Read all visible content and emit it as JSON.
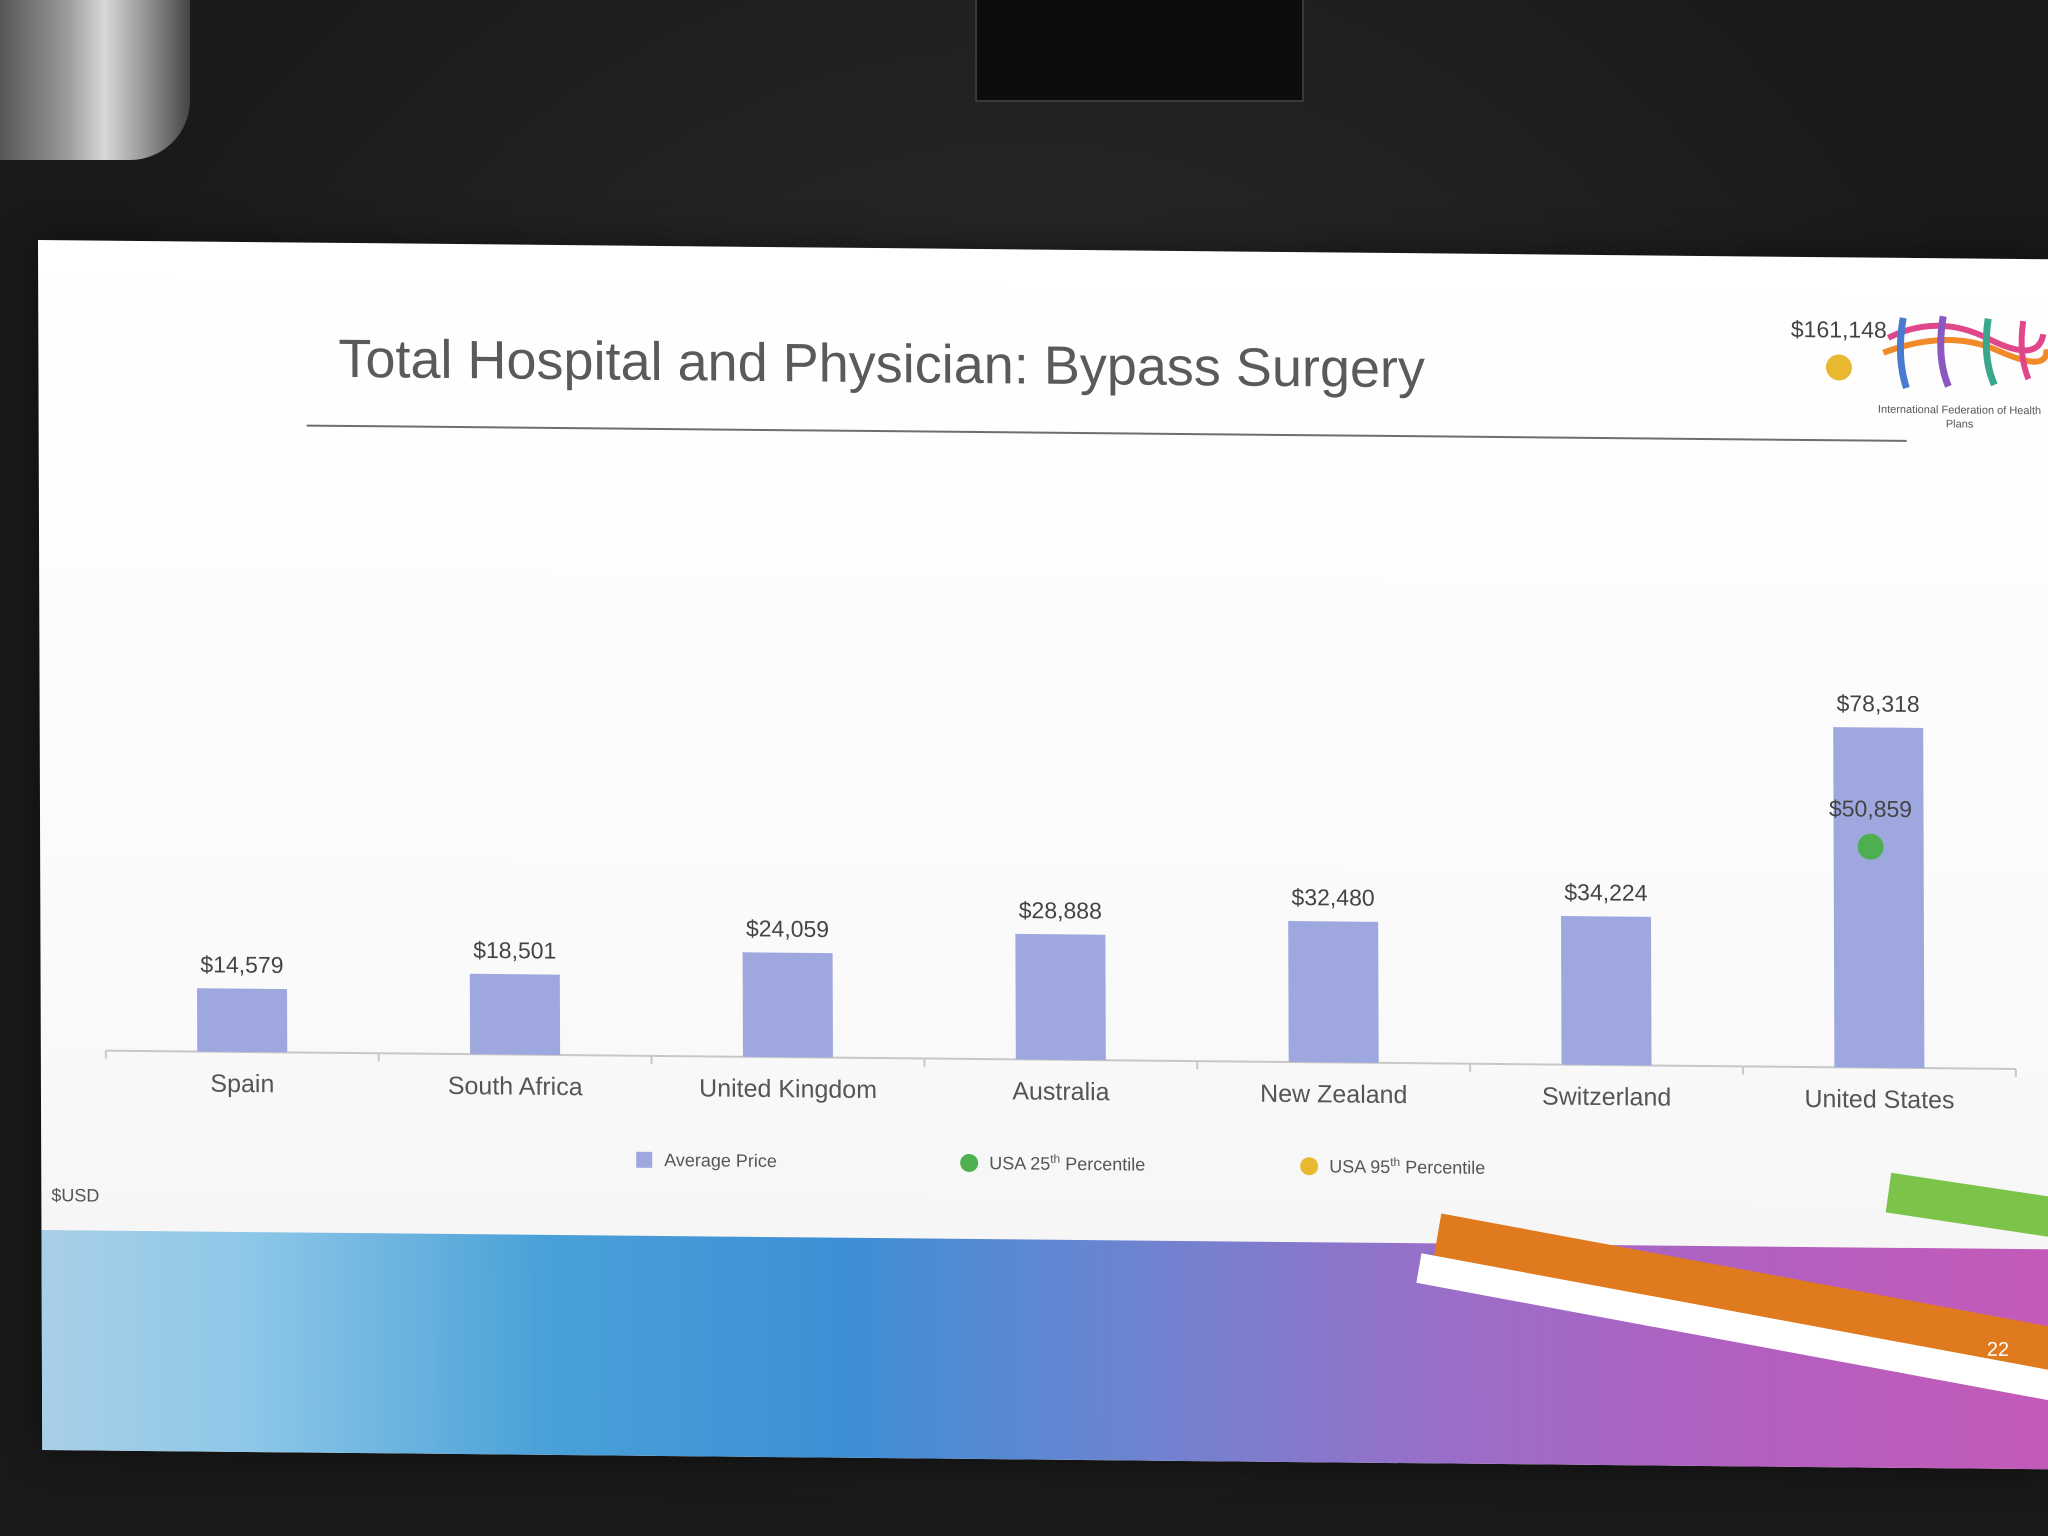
{
  "slide": {
    "title": "Total Hospital and Physician: Bypass Surgery",
    "logo_caption": "International Federation of Health Plans",
    "unit": "$USD",
    "page_number": "22"
  },
  "colors": {
    "bar": "#9ea8de",
    "p25": "#4caf50",
    "p95": "#e8b830",
    "axis": "#c8c8c8"
  },
  "chart_data": {
    "type": "bar",
    "categories": [
      "Spain",
      "South Africa",
      "United Kingdom",
      "Australia",
      "New Zealand",
      "Switzerland",
      "United States"
    ],
    "series": [
      {
        "name": "Average Price",
        "values": [
          14579,
          18501,
          24059,
          28888,
          32480,
          34224,
          78318
        ],
        "labels": [
          "$14,579",
          "$18,501",
          "$24,059",
          "$28,888",
          "$32,480",
          "$34,224",
          "$78,318"
        ]
      },
      {
        "name": "USA 25th Percentile",
        "legend_base": "USA 25",
        "legend_sup": "th",
        "legend_rest": " Percentile",
        "category": "United States",
        "value": 50859,
        "label": "$50,859"
      },
      {
        "name": "USA 95th Percentile",
        "legend_base": "USA 95",
        "legend_sup": "th",
        "legend_rest": " Percentile",
        "category": "United States",
        "value": 161148,
        "label": "$161,148"
      }
    ],
    "ylim": [
      0,
      175000
    ],
    "grid": false,
    "legend": "bottom"
  }
}
